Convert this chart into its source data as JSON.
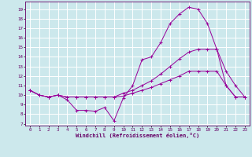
{
  "xlabel": "Windchill (Refroidissement éolien,°C)",
  "background_color": "#cce8ec",
  "grid_color": "#ffffff",
  "line_color": "#990099",
  "x_ticks": [
    0,
    1,
    2,
    3,
    4,
    5,
    6,
    7,
    8,
    9,
    10,
    11,
    12,
    13,
    14,
    15,
    16,
    17,
    18,
    19,
    20,
    21,
    22,
    23
  ],
  "y_ticks": [
    7,
    8,
    9,
    10,
    11,
    12,
    13,
    14,
    15,
    16,
    17,
    18,
    19
  ],
  "ylim": [
    6.8,
    19.8
  ],
  "xlim": [
    -0.5,
    23.5
  ],
  "line1_x": [
    0,
    1,
    2,
    3,
    4,
    5,
    6,
    7,
    8,
    9,
    10,
    11,
    12,
    13,
    14,
    15,
    16,
    17,
    18,
    19,
    20,
    21,
    22,
    23
  ],
  "line1_y": [
    10.5,
    10.0,
    9.8,
    10.0,
    9.5,
    8.4,
    8.4,
    8.3,
    8.7,
    7.3,
    9.7,
    11.0,
    13.7,
    14.0,
    15.5,
    17.5,
    18.5,
    19.2,
    19.0,
    17.5,
    14.8,
    12.5,
    11.0,
    9.8
  ],
  "line2_x": [
    0,
    1,
    2,
    3,
    4,
    5,
    6,
    7,
    8,
    9,
    10,
    11,
    12,
    13,
    14,
    15,
    16,
    17,
    18,
    19,
    20,
    21,
    22,
    23
  ],
  "line2_y": [
    10.5,
    10.0,
    9.8,
    10.0,
    9.8,
    9.8,
    9.8,
    9.8,
    9.8,
    9.8,
    10.2,
    10.5,
    11.0,
    11.5,
    12.2,
    13.0,
    13.8,
    14.5,
    14.8,
    14.8,
    14.8,
    11.0,
    9.8,
    9.8
  ],
  "line3_x": [
    0,
    1,
    2,
    3,
    4,
    5,
    6,
    7,
    8,
    9,
    10,
    11,
    12,
    13,
    14,
    15,
    16,
    17,
    18,
    19,
    20,
    21,
    22,
    23
  ],
  "line3_y": [
    10.5,
    10.0,
    9.8,
    10.0,
    9.8,
    9.8,
    9.8,
    9.8,
    9.8,
    9.8,
    9.9,
    10.2,
    10.5,
    10.8,
    11.2,
    11.6,
    12.0,
    12.5,
    12.5,
    12.5,
    12.5,
    11.0,
    9.8,
    9.8
  ],
  "tick_fontsize": 4.2,
  "xlabel_fontsize": 5.0
}
